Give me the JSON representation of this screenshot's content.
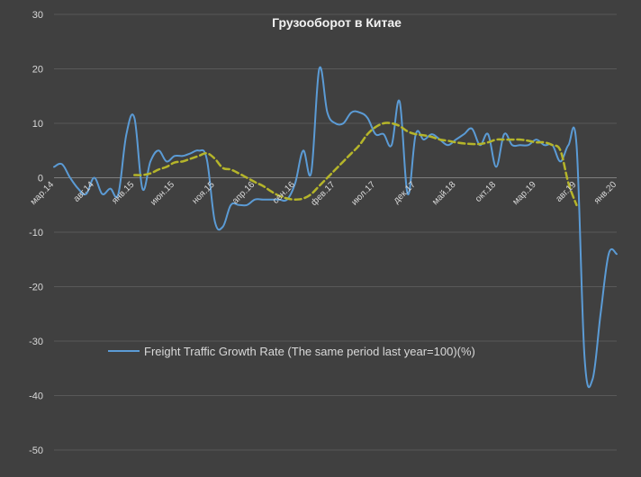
{
  "chart_data": {
    "type": "line",
    "title": "Грузооборот в Китае",
    "ylim": [
      -50,
      30
    ],
    "yticks": [
      30,
      20,
      10,
      0,
      -10,
      -20,
      -30,
      -40,
      -50
    ],
    "grid": true,
    "legend_position": "lower-left",
    "x_tick_labels": [
      "мар.14",
      "авг.14",
      "янв.15",
      "июн.15",
      "ноя.15",
      "апр.16",
      "сен.16",
      "фев.17",
      "июл.17",
      "дек.17",
      "май.18",
      "окт.18",
      "мар.19",
      "авг.19",
      "янв.20"
    ],
    "x_tick_index": [
      0,
      5,
      10,
      15,
      20,
      25,
      30,
      35,
      40,
      45,
      50,
      55,
      60,
      65,
      70
    ],
    "series": [
      {
        "name": "Freight Traffic Growth Rate (The same period last year=100)(%)",
        "color": "#5b9bd5",
        "x_start": 0,
        "values": [
          2,
          2.5,
          0,
          -2,
          -3,
          0,
          -3,
          -2,
          -3,
          8,
          11,
          -2,
          3,
          5,
          3,
          4,
          4,
          4.5,
          5,
          3.5,
          -8,
          -9,
          -5,
          -5,
          -5,
          -4,
          -4,
          -4,
          -4,
          -4,
          -1,
          5,
          1,
          20,
          12,
          10,
          10,
          12,
          12,
          11,
          8,
          8,
          6,
          14,
          -3,
          8,
          7,
          8,
          7,
          6,
          7,
          8,
          9,
          6,
          8,
          2,
          8,
          6,
          6,
          6,
          7,
          6,
          6,
          3,
          6,
          6,
          -33,
          -37,
          -25,
          -14,
          -14
        ]
      },
      {
        "name": "",
        "color": "#b5b52a",
        "dashed": true,
        "x_start": 10,
        "values": [
          0.5,
          0.5,
          0.8,
          1.5,
          2,
          2.8,
          3,
          3.5,
          4,
          4.5,
          3.5,
          1.8,
          1.5,
          0.8,
          0,
          -0.8,
          -1.5,
          -2.5,
          -3.3,
          -3.8,
          -4,
          -3.8,
          -3,
          -1.5,
          0,
          1.5,
          3,
          4.5,
          6,
          8,
          9.3,
          10,
          10,
          9.5,
          8.5,
          8,
          7.8,
          7.5,
          7,
          6.8,
          6.5,
          6.3,
          6.2,
          6.2,
          6.5,
          7,
          7,
          7,
          7,
          6.8,
          6.5,
          6.5,
          6,
          5,
          -1,
          -5
        ]
      }
    ]
  }
}
